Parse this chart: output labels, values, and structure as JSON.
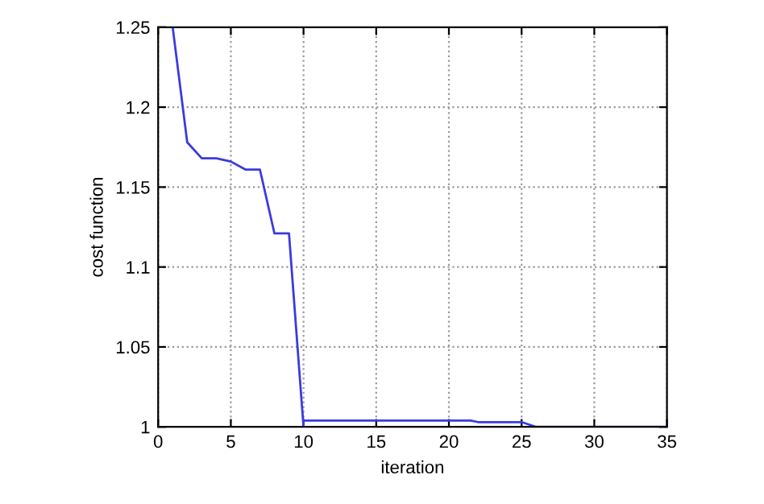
{
  "chart_data": {
    "type": "line",
    "xlabel": "iteration",
    "ylabel": "cost function",
    "x": [
      1,
      2,
      3,
      4,
      5,
      6,
      7,
      8,
      9,
      10,
      10,
      15,
      21.5,
      22,
      25,
      26,
      30,
      35
    ],
    "series": [
      {
        "color": "#3a3ae0",
        "values": [
          1.25,
          1.178,
          1.168,
          1.168,
          1.166,
          1.161,
          1.161,
          1.121,
          1.121,
          1.0,
          1.004,
          1.004,
          1.004,
          1.003,
          1.003,
          1.0,
          1.0,
          1.0
        ]
      }
    ],
    "xlim": [
      0,
      35
    ],
    "xticks": [
      0,
      5,
      10,
      15,
      20,
      25,
      30,
      35
    ],
    "ylim": [
      1,
      1.25
    ],
    "yticks": [
      1,
      1.05,
      1.1,
      1.15,
      1.2,
      1.25
    ],
    "grid": true,
    "marker": "none",
    "line_style": "solid"
  }
}
